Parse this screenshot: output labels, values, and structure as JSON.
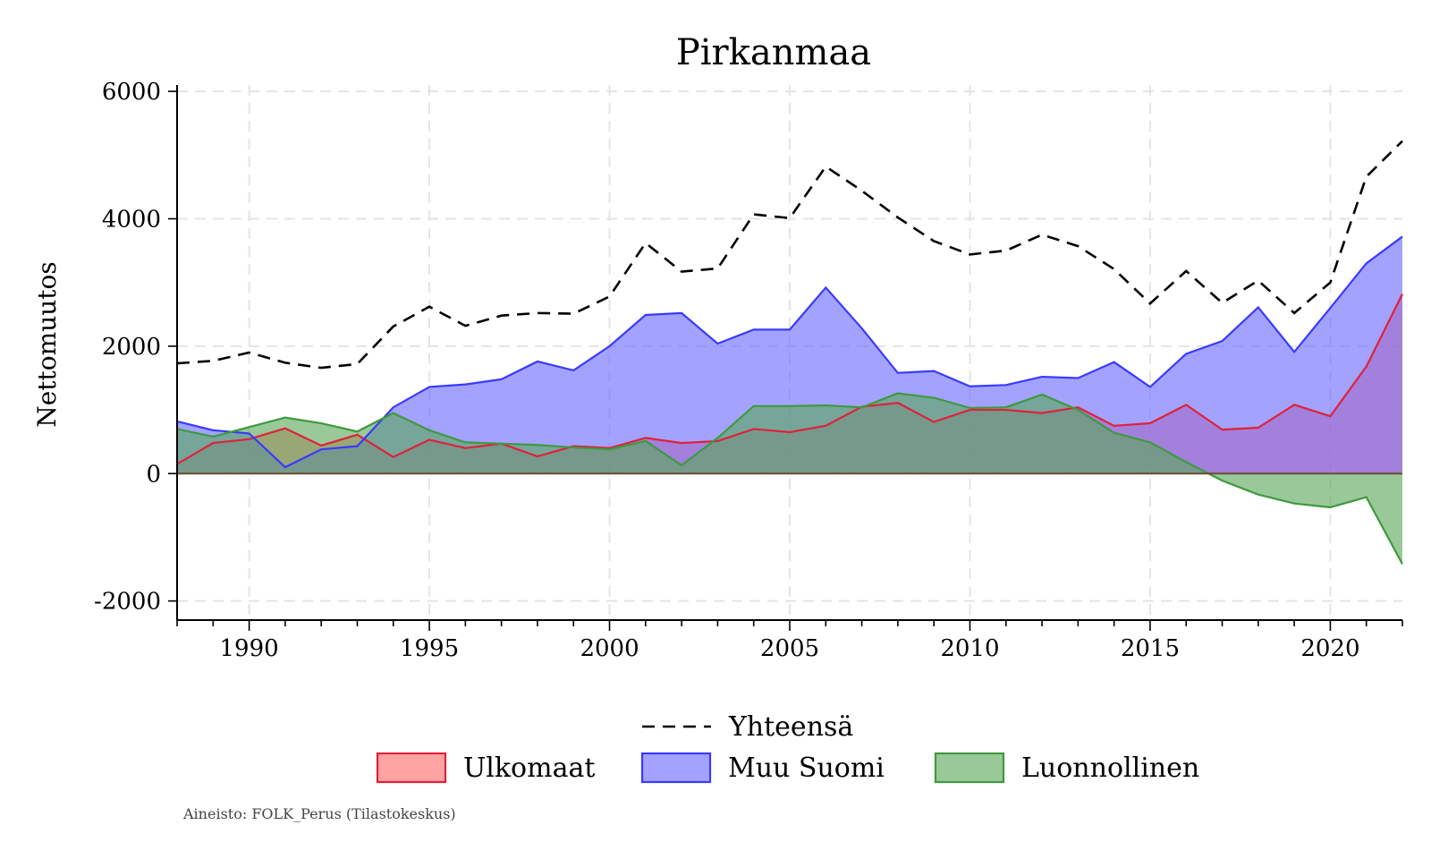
{
  "chart_data": {
    "type": "area",
    "title": "Pirkanmaa",
    "xlabel": "",
    "ylabel": "Nettomuutos",
    "xlim": [
      1988,
      2022
    ],
    "ylim": [
      -2300,
      6100
    ],
    "x_ticks": [
      1990,
      1995,
      2000,
      2005,
      2010,
      2015,
      2020
    ],
    "y_ticks": [
      6000,
      4000,
      2000,
      0,
      -2000
    ],
    "y_tick_labels": [
      "6000",
      "4000",
      "2000",
      "0",
      "-2000"
    ],
    "x": [
      1988,
      1989,
      1990,
      1991,
      1992,
      1993,
      1994,
      1995,
      1996,
      1997,
      1998,
      1999,
      2000,
      2001,
      2002,
      2003,
      2004,
      2005,
      2006,
      2007,
      2008,
      2009,
      2010,
      2011,
      2012,
      2013,
      2014,
      2015,
      2016,
      2017,
      2018,
      2019,
      2020,
      2021,
      2022
    ],
    "series": [
      {
        "name": "Ulkomaat",
        "color": "#ff6b6b",
        "values": [
          150,
          480,
          540,
          710,
          440,
          610,
          260,
          530,
          400,
          470,
          270,
          430,
          400,
          560,
          480,
          510,
          700,
          650,
          750,
          1050,
          1110,
          810,
          1000,
          1000,
          950,
          1040,
          750,
          790,
          1080,
          690,
          720,
          1080,
          900,
          1680,
          2820
        ]
      },
      {
        "name": "Muu Suomi",
        "color": "#6b6bff",
        "values": [
          820,
          680,
          630,
          100,
          380,
          430,
          1040,
          1360,
          1400,
          1480,
          1760,
          1620,
          2000,
          2490,
          2520,
          2040,
          2260,
          2260,
          2920,
          2280,
          1580,
          1610,
          1370,
          1390,
          1520,
          1500,
          1750,
          1360,
          1880,
          2080,
          2610,
          1910,
          2600,
          3300,
          3720
        ]
      },
      {
        "name": "Luonnollinen",
        "color": "#5aa85a",
        "values": [
          700,
          580,
          730,
          880,
          790,
          660,
          950,
          680,
          490,
          470,
          450,
          410,
          380,
          510,
          130,
          560,
          1060,
          1060,
          1070,
          1040,
          1260,
          1190,
          1030,
          1040,
          1240,
          1000,
          640,
          490,
          180,
          -110,
          -330,
          -470,
          -530,
          -370,
          -1420
        ]
      },
      {
        "name": "Yhteensä",
        "color": "#000000",
        "style": "dashed",
        "values": [
          1730,
          1770,
          1900,
          1740,
          1660,
          1720,
          2310,
          2620,
          2320,
          2480,
          2520,
          2510,
          2780,
          3620,
          3170,
          3220,
          4070,
          4010,
          4820,
          4440,
          4020,
          3650,
          3440,
          3500,
          3750,
          3570,
          3210,
          2670,
          3180,
          2680,
          3030,
          2520,
          3000,
          4660,
          5220
        ]
      }
    ],
    "legend": [
      "Yhteensä",
      "Ulkomaat",
      "Muu Suomi",
      "Luonnollinen"
    ],
    "legend_position": "bottom",
    "grid": true,
    "source_note": "Aineisto: FOLK_Perus (Tilastokeskus)"
  }
}
